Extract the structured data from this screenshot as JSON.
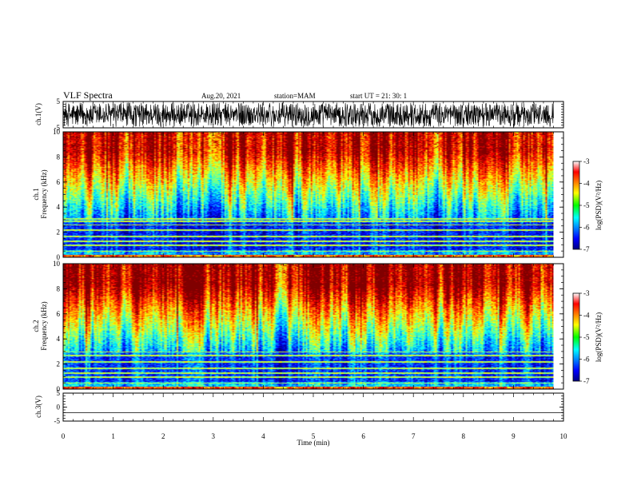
{
  "header": {
    "title": "VLF Spectra",
    "date": "Aug.20, 2021",
    "station": "station=MAM",
    "start": "start  UT  =   21: 30: 1"
  },
  "chart_data": [
    {
      "type": "line",
      "name": "ch1-waveform",
      "ylabel": "ch.1(V)",
      "ylim": [
        -5,
        5
      ],
      "yticks": [
        5,
        -5
      ],
      "xlim": [
        0,
        10
      ],
      "description_values": "dense noise waveform filling ±4 V"
    },
    {
      "type": "heatmap",
      "name": "ch1-spectrogram",
      "ylabel_line1": "ch.1",
      "ylabel_line2": "Frequency (kHz)",
      "ylim": [
        0,
        10
      ],
      "yticks": [
        0,
        2,
        4,
        6,
        8,
        10
      ],
      "xlim": [
        0,
        9.8
      ],
      "colorbar": {
        "label": "log(PSD)(V²/Hz)",
        "range": [
          -7,
          -3
        ],
        "ticks": [
          -3,
          -4,
          -5,
          -6,
          -7
        ]
      },
      "bands_khz": [
        0.2,
        0.5,
        1.0,
        1.3,
        1.7,
        2.2,
        2.6,
        2.9,
        3.1
      ]
    },
    {
      "type": "heatmap",
      "name": "ch2-spectrogram",
      "ylabel_line1": "ch.2",
      "ylabel_line2": "Frequency (kHz)",
      "ylim": [
        0,
        10
      ],
      "yticks": [
        0,
        2,
        4,
        6,
        8,
        10
      ],
      "xlim": [
        0,
        9.8
      ],
      "colorbar": {
        "label": "log(PSD)(V²/Hz)",
        "range": [
          -7,
          -3
        ],
        "ticks": [
          -3,
          -4,
          -5,
          -6,
          -7
        ]
      },
      "bands_khz": [
        0.5,
        1.0,
        1.3,
        1.7,
        2.2,
        2.7,
        3.0
      ]
    },
    {
      "type": "line",
      "name": "ch3-waveform",
      "ylabel": "ch.3(V)",
      "ylim": [
        -5,
        5
      ],
      "yticks": [
        5,
        0,
        -5
      ],
      "values_constant": -2,
      "xlim": [
        0,
        10
      ]
    }
  ],
  "xaxis": {
    "label": "Time  (min)",
    "range": [
      0,
      10
    ],
    "ticks": [
      0,
      1,
      2,
      3,
      4,
      5,
      6,
      7,
      8,
      9,
      10
    ]
  }
}
